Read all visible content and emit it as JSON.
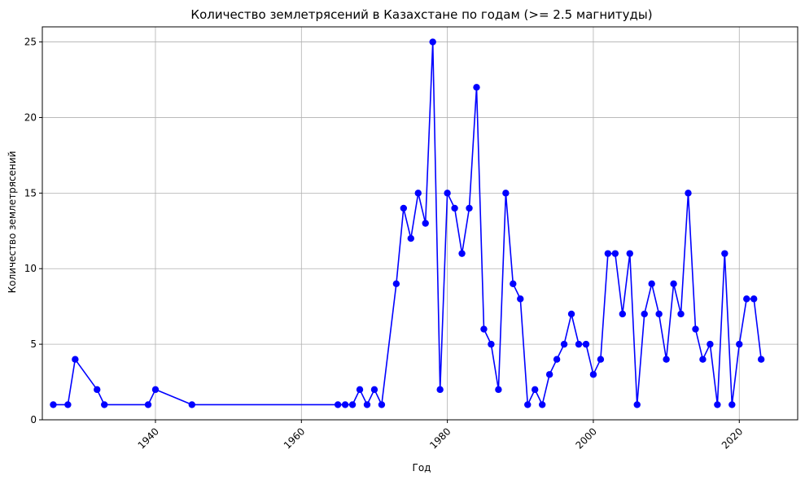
{
  "chart_data": {
    "type": "line",
    "title": "Количество землетрясений в Казахстане по годам (>= 2.5 магнитуды)",
    "xlabel": "Год",
    "ylabel": "Количество землетрясений",
    "xlim": [
      1924.5,
      2028
    ],
    "ylim": [
      0,
      26
    ],
    "xticks": [
      1940,
      1960,
      1980,
      2000,
      2020
    ],
    "yticks": [
      0,
      5,
      10,
      15,
      20,
      25
    ],
    "grid": true,
    "series": [
      {
        "color": "#0000ff",
        "marker": "circle",
        "x": [
          1926,
          1928,
          1929,
          1932,
          1933,
          1939,
          1940,
          1945,
          1965,
          1966,
          1967,
          1968,
          1969,
          1970,
          1971,
          1973,
          1974,
          1975,
          1976,
          1977,
          1978,
          1979,
          1980,
          1981,
          1982,
          1983,
          1984,
          1985,
          1986,
          1987,
          1988,
          1989,
          1990,
          1991,
          1992,
          1993,
          1994,
          1995,
          1996,
          1997,
          1998,
          1999,
          2000,
          2001,
          2002,
          2003,
          2004,
          2005,
          2006,
          2007,
          2008,
          2009,
          2010,
          2011,
          2012,
          2013,
          2014,
          2015,
          2016,
          2017,
          2018,
          2019,
          2020,
          2021,
          2022,
          2023
        ],
        "values": [
          1,
          1,
          4,
          2,
          1,
          1,
          2,
          1,
          1,
          1,
          1,
          2,
          1,
          2,
          1,
          9,
          14,
          12,
          15,
          13,
          25,
          2,
          15,
          14,
          11,
          14,
          22,
          6,
          5,
          2,
          15,
          9,
          8,
          1,
          2,
          1,
          3,
          4,
          5,
          7,
          5,
          5,
          3,
          4,
          11,
          11,
          7,
          11,
          1,
          7,
          9,
          7,
          4,
          9,
          7,
          15,
          6,
          4,
          5,
          1,
          11,
          1,
          5,
          8,
          8,
          4
        ]
      }
    ]
  }
}
